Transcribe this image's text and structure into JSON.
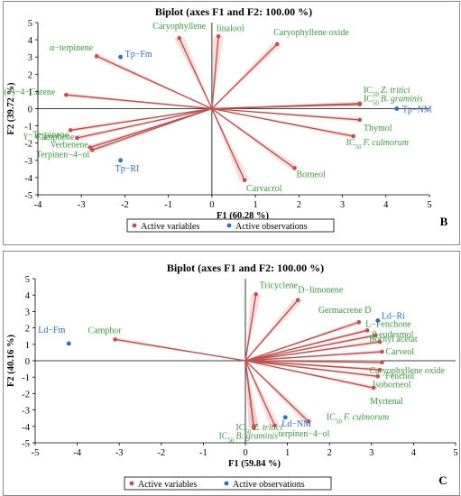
{
  "panels": [
    {
      "id": "panel-b",
      "letter": "B",
      "title": "Biplot (axes F1 and F2: 100.00 %)",
      "xlabel": "F1 (60.28 %)",
      "ylabel": "F2 (39.72 %)",
      "legend": {
        "variables": "Active variables",
        "observations": "Active observations"
      }
    },
    {
      "id": "panel-c",
      "letter": "C",
      "title": "Biplot (axes F1 and F2: 100.00 %)",
      "xlabel": "F1 (59.84 %)",
      "ylabel": "F2 (40.16 %)",
      "legend": {
        "variables": "Active variables",
        "observations": "Active observations"
      }
    }
  ],
  "colors": {
    "variable_line": "#c0504d",
    "variable_point": "#c0504d",
    "variable_label": "#3c9a3c",
    "observation_point": "#2d6bbf",
    "observation_label": "#2d6bbf"
  },
  "chart_data": [
    {
      "type": "scatter",
      "title": "Biplot (axes F1 and F2: 100.00 %)",
      "xlabel": "F1 (60.28 %)",
      "ylabel": "F2 (39.72 %)",
      "xlim": [
        -4,
        5
      ],
      "ylim": [
        -5,
        5
      ],
      "xticks": [
        -4,
        -3,
        -2,
        -1,
        0,
        1,
        2,
        3,
        4,
        5
      ],
      "yticks": [
        -5,
        -4,
        -3,
        -2,
        -1,
        0,
        1,
        2,
        3,
        4,
        5
      ],
      "series": [
        {
          "name": "Active variables",
          "points": [
            {
              "label": "Caryophyllene",
              "x": -0.75,
              "y": 4.1
            },
            {
              "label": "linalool",
              "x": 0.15,
              "y": 4.2
            },
            {
              "label": "Caryophyllene oxide",
              "x": 1.5,
              "y": 3.75
            },
            {
              "label": "α−terpinene",
              "x": -2.65,
              "y": 3.05
            },
            {
              "label": "(+)−4−Carene",
              "x": -3.35,
              "y": 0.8
            },
            {
              "label": "γ−Terpinene",
              "x": -3.25,
              "y": -1.25
            },
            {
              "label": "Camphene",
              "x": -3.1,
              "y": -1.7
            },
            {
              "label": "Verbenene",
              "x": -2.8,
              "y": -2.25
            },
            {
              "label": "Terpinen−4−ol",
              "x": -2.75,
              "y": -2.4
            },
            {
              "label": "Carvacrol",
              "x": 0.75,
              "y": -4.15
            },
            {
              "label": "Borneol",
              "x": 1.9,
              "y": -3.45
            },
            {
              "label": "IC50 Z. tritici",
              "x": 3.4,
              "y": 0.3
            },
            {
              "label": "IC50 B. graminis",
              "x": 3.4,
              "y": 0.25
            },
            {
              "label": "Thymol",
              "x": 3.4,
              "y": -0.65
            },
            {
              "label": "IC50 F. culmorum",
              "x": 3.25,
              "y": -1.6
            }
          ]
        },
        {
          "name": "Active observations",
          "points": [
            {
              "label": "Tp−Fm",
              "x": -2.1,
              "y": 3.0
            },
            {
              "label": "Tp−NM",
              "x": 4.25,
              "y": 0.0
            },
            {
              "label": "Tp−RI",
              "x": -2.1,
              "y": -3.0
            }
          ]
        }
      ]
    },
    {
      "type": "scatter",
      "title": "Biplot (axes F1 and F2: 100.00 %)",
      "xlabel": "F1 (59.84 %)",
      "ylabel": "F2 (40.16 %)",
      "xlim": [
        -5,
        5
      ],
      "ylim": [
        -5,
        5
      ],
      "xticks": [
        -5,
        -4,
        -3,
        -2,
        -1,
        0,
        1,
        2,
        3,
        4,
        5
      ],
      "yticks": [
        -5,
        -4,
        -3,
        -2,
        -1,
        0,
        1,
        2,
        3,
        4,
        5
      ],
      "series": [
        {
          "name": "Active variables",
          "points": [
            {
              "label": "Camphor",
              "x": -3.1,
              "y": 1.3
            },
            {
              "label": "Tricyclene",
              "x": 0.25,
              "y": 4.05
            },
            {
              "label": "D−limonene",
              "x": 1.25,
              "y": 3.7
            },
            {
              "label": "Germacrene D",
              "x": 2.7,
              "y": 2.35
            },
            {
              "label": "L−Fenchone",
              "x": 2.9,
              "y": 1.85
            },
            {
              "label": "β eudesmol",
              "x": 3.1,
              "y": 1.55
            },
            {
              "label": "Bornyl acetat",
              "x": 3.2,
              "y": 1.15
            },
            {
              "label": "Carveol",
              "x": 3.25,
              "y": 0.55
            },
            {
              "label": "Caryophyllene oxide",
              "x": 3.25,
              "y": -0.1
            },
            {
              "label": "Fenchol",
              "x": 3.2,
              "y": -0.55
            },
            {
              "label": "Isoborneol",
              "x": 3.15,
              "y": -0.95
            },
            {
              "label": "Myrtenal",
              "x": 3.05,
              "y": -1.65
            },
            {
              "label": "IC50 F. culmorum",
              "x": 1.5,
              "y": -3.7
            },
            {
              "label": "IC50 Z. tritici",
              "x": 0.2,
              "y": -4.0
            },
            {
              "label": "IC50 B. graminis",
              "x": 0.2,
              "y": -4.1
            },
            {
              "label": "terpinen−4−ol",
              "x": 0.7,
              "y": -3.95
            }
          ]
        },
        {
          "name": "Active observations",
          "points": [
            {
              "label": "Ld−Fm",
              "x": -4.2,
              "y": 1.05
            },
            {
              "label": "Ld−Ri",
              "x": 3.15,
              "y": 2.45
            },
            {
              "label": "Ld−NM",
              "x": 0.95,
              "y": -3.45
            }
          ]
        }
      ]
    }
  ]
}
